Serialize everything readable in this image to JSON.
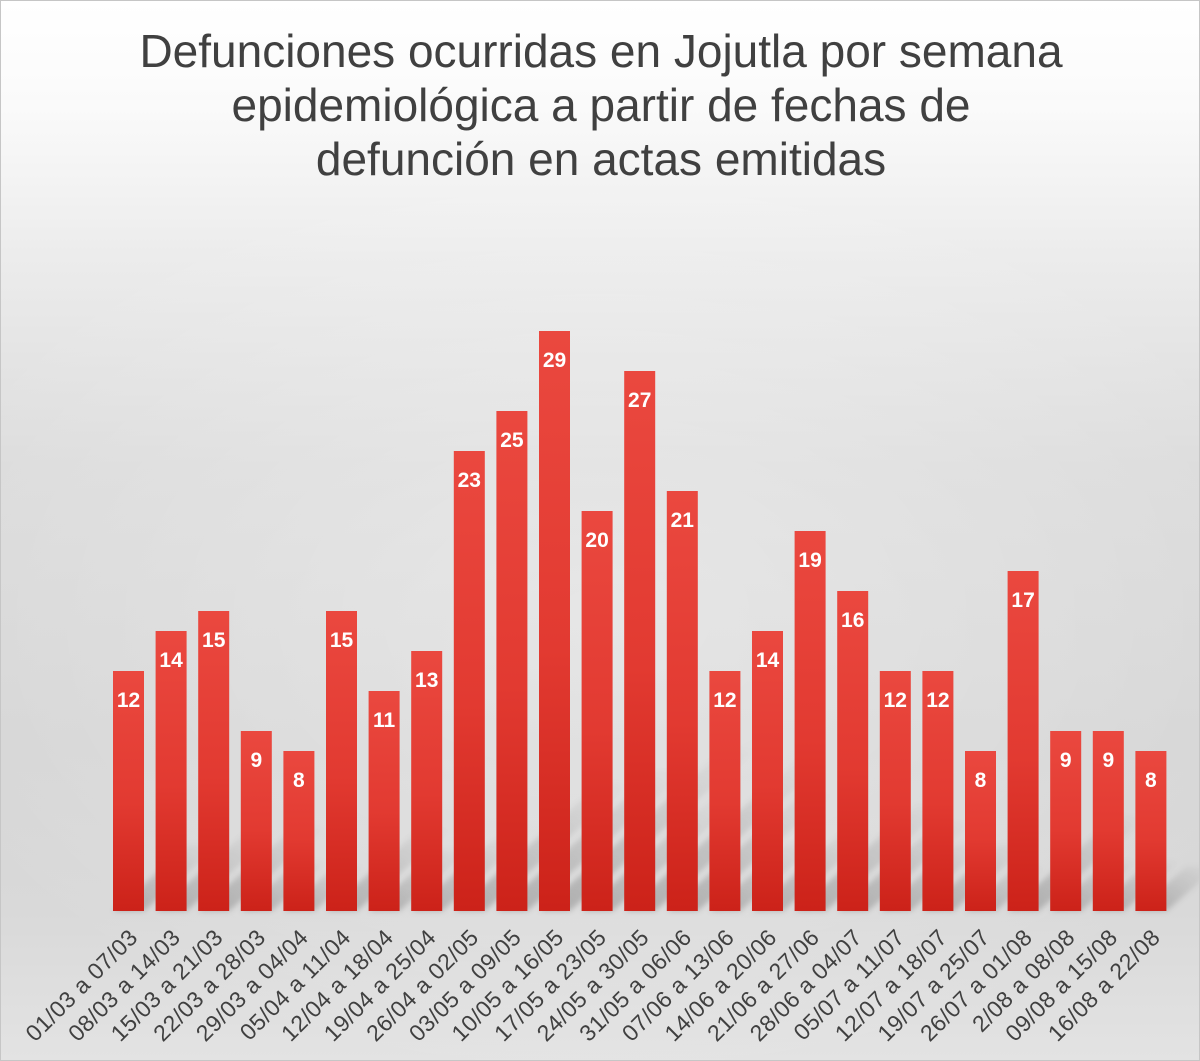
{
  "chart_data": {
    "type": "bar",
    "title": "Defunciones ocurridas en Jojutla por semana\nepidemiológica a partir de fechas de\ndefunción en actas emitidas",
    "categories": [
      "01/03 a 07/03",
      "08/03 a 14/03",
      "15/03 a 21/03",
      "22/03 a 28/03",
      "29/03 a 04/04",
      "05/04 a 11/04",
      "12/04 a 18/04",
      "19/04 a 25/04",
      "26/04 a 02/05",
      "03/05 a 09/05",
      "10/05 a 16/05",
      "17/05 a 23/05",
      "24/05 a 30/05",
      "31/05 a 06/06",
      "07/06 a 13/06",
      "14/06 a 20/06",
      "21/06 a 27/06",
      "28/06 a 04/07",
      "05/07 a 11/07",
      "12/07 a 18/07",
      "19/07 a 25/07",
      "26/07 a 01/08",
      "2/08 a 08/08",
      "09/08 a 15/08",
      "16/08 a 22/08"
    ],
    "values": [
      12,
      14,
      15,
      9,
      8,
      15,
      11,
      13,
      23,
      25,
      29,
      20,
      27,
      21,
      12,
      14,
      19,
      16,
      12,
      12,
      8,
      17,
      9,
      9,
      8
    ],
    "ylim": [
      0,
      30
    ],
    "data_labels": "inside-end",
    "grid": false,
    "legend": "none",
    "colors": {
      "bar": "#e23a31",
      "data_label": "#ffffff",
      "text": "#404040"
    }
  }
}
